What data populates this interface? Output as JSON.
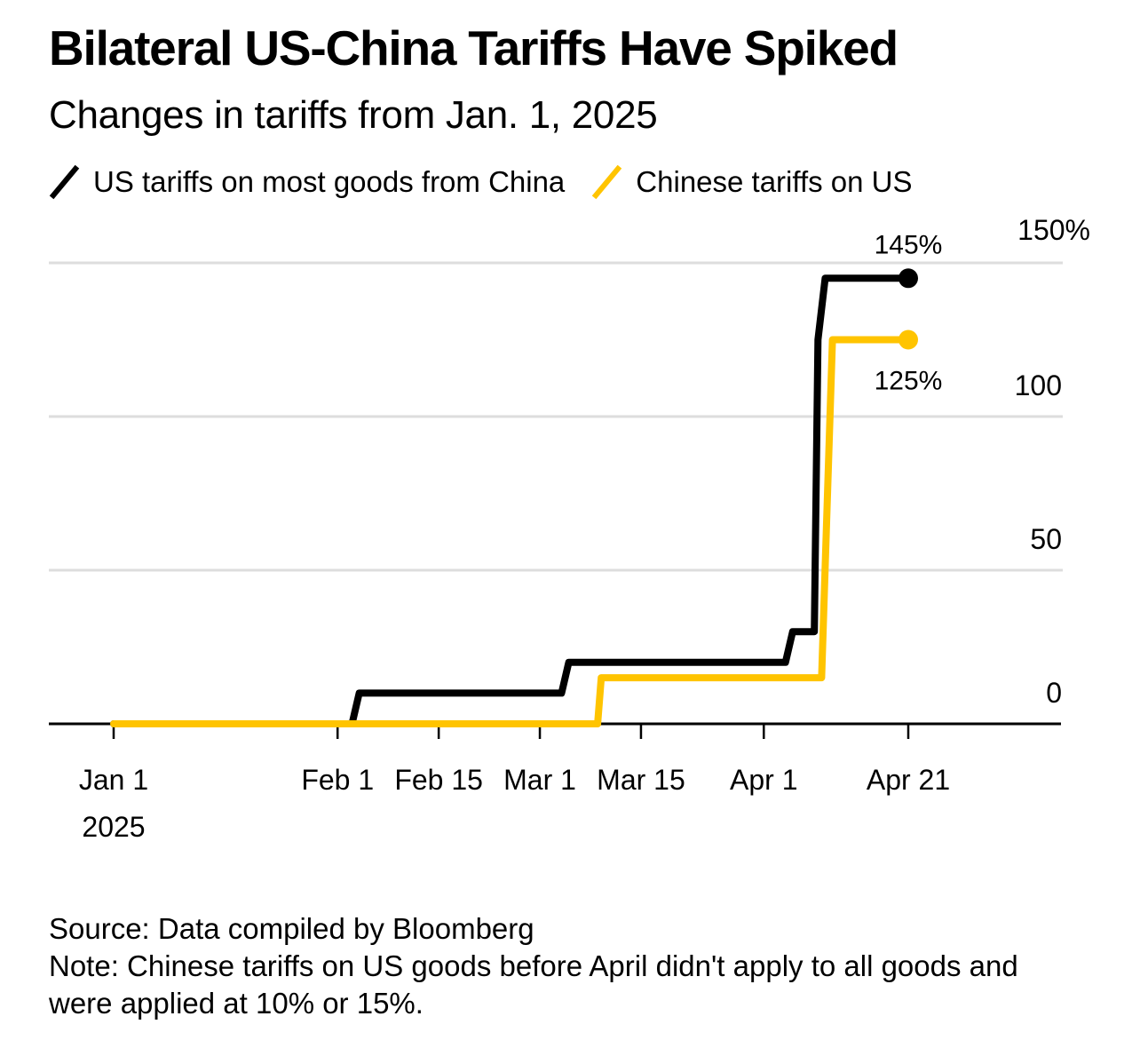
{
  "title": "Bilateral US-China Tariffs Have Spiked",
  "subtitle": "Changes in tariffs from Jan. 1, 2025",
  "footer": {
    "source": "Source: Data compiled by Bloomberg",
    "note": "Note: Chinese tariffs on US goods before April didn't apply to all goods and were applied at 10% or 15%."
  },
  "colors": {
    "us_series": "#000000",
    "china_series": "#FFC400",
    "gridline": "#dddddd",
    "axis": "#000000"
  },
  "chart_data": {
    "type": "line",
    "title": "Bilateral US-China Tariffs Have Spiked",
    "subtitle": "Changes in tariffs from Jan. 1, 2025",
    "xlabel": "",
    "ylabel": "",
    "x_unit": "days since Jan 1, 2025",
    "xlim": [
      -9,
      130
    ],
    "ylim": [
      0,
      150
    ],
    "y_ticks": [
      {
        "value": 0,
        "label": "0"
      },
      {
        "value": 50,
        "label": "50"
      },
      {
        "value": 100,
        "label": "100"
      },
      {
        "value": 150,
        "label": "150%"
      }
    ],
    "x_ticks": [
      {
        "value": 0,
        "label": "Jan 1",
        "sublabel": "2025"
      },
      {
        "value": 31,
        "label": "Feb 1"
      },
      {
        "value": 45,
        "label": "Feb 15"
      },
      {
        "value": 59,
        "label": "Mar 1"
      },
      {
        "value": 73,
        "label": "Mar 15"
      },
      {
        "value": 90,
        "label": "Apr 1"
      },
      {
        "value": 110,
        "label": "Apr 21"
      }
    ],
    "grid": true,
    "legend_position": "top-left",
    "series": [
      {
        "name": "US tariffs on most goods from China",
        "color": "#000000",
        "shape": "step",
        "points": [
          [
            0,
            0
          ],
          [
            33,
            0
          ],
          [
            34,
            10
          ],
          [
            62,
            10
          ],
          [
            63,
            20
          ],
          [
            93,
            20
          ],
          [
            94,
            30
          ],
          [
            97,
            30
          ],
          [
            97.5,
            125
          ],
          [
            98.5,
            145
          ],
          [
            110,
            145
          ]
        ],
        "end_value": 145,
        "end_label": "145%"
      },
      {
        "name": "Chinese tariffs on US",
        "color": "#FFC400",
        "shape": "step",
        "points": [
          [
            0,
            0
          ],
          [
            67,
            0
          ],
          [
            67.5,
            15
          ],
          [
            98,
            15
          ],
          [
            99.5,
            125
          ],
          [
            110,
            125
          ]
        ],
        "end_value": 125,
        "end_label": "125%"
      }
    ]
  }
}
